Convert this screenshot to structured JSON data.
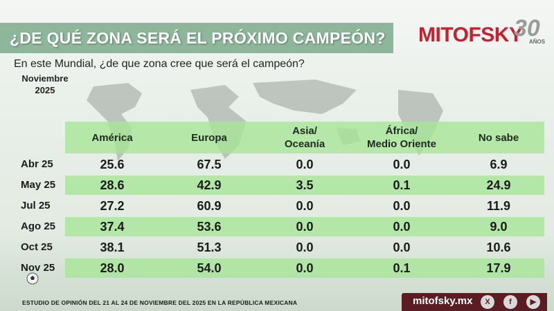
{
  "header": {
    "title": "¿DE QUÉ ZONA SERÁ EL PRÓXIMO CAMPEÓN?",
    "logo_text": "MITOFSKY",
    "logo_years": "30",
    "logo_years_label": "AÑOS"
  },
  "question": "En este Mundial, ¿de que zona cree que será el campeón?",
  "period": {
    "line1": "Noviembre",
    "line2": "2025"
  },
  "chart_data": {
    "type": "table",
    "columns": [
      "América",
      "Europa",
      "Asia/ Oceanía",
      "África/ Medio Oriente",
      "No sabe"
    ],
    "columns_display": [
      [
        "América"
      ],
      [
        "Europa"
      ],
      [
        "Asia/",
        "Oceanía"
      ],
      [
        "África/",
        "Medio Oriente"
      ],
      [
        "No sabe"
      ]
    ],
    "rows": [
      {
        "label": "Abr 25",
        "values": [
          "25.6",
          "67.5",
          "0.0",
          "0.0",
          "6.9"
        ]
      },
      {
        "label": "May 25",
        "values": [
          "28.6",
          "42.9",
          "3.5",
          "0.1",
          "24.9"
        ]
      },
      {
        "label": "Jul 25",
        "values": [
          "27.2",
          "60.9",
          "0.0",
          "0.0",
          "11.9"
        ]
      },
      {
        "label": "Ago 25",
        "values": [
          "37.4",
          "53.6",
          "0.0",
          "0.0",
          "9.0"
        ]
      },
      {
        "label": "Oct 25",
        "values": [
          "38.1",
          "51.3",
          "0.0",
          "0.0",
          "10.6"
        ]
      },
      {
        "label": "Nov 25",
        "values": [
          "28.0",
          "54.0",
          "0.0",
          "0.1",
          "17.9"
        ]
      }
    ]
  },
  "footer": {
    "study_note": "ESTUDIO DE OPINIÓN DEL 21 AL 24 DE NOVIEMBRE DEL 2025 EN LA REPÚBLICA MEXICANA",
    "url": "mitofsky.mx",
    "social": [
      {
        "icon": "x-icon",
        "glyph": "X"
      },
      {
        "icon": "facebook-icon",
        "glyph": "f"
      },
      {
        "icon": "youtube-icon",
        "glyph": "▶"
      }
    ]
  },
  "colors": {
    "title_bar": "#8db69a",
    "row_highlight": "#a5e696",
    "brand_red": "#c8202c",
    "footer_bar": "#5a1d24"
  }
}
